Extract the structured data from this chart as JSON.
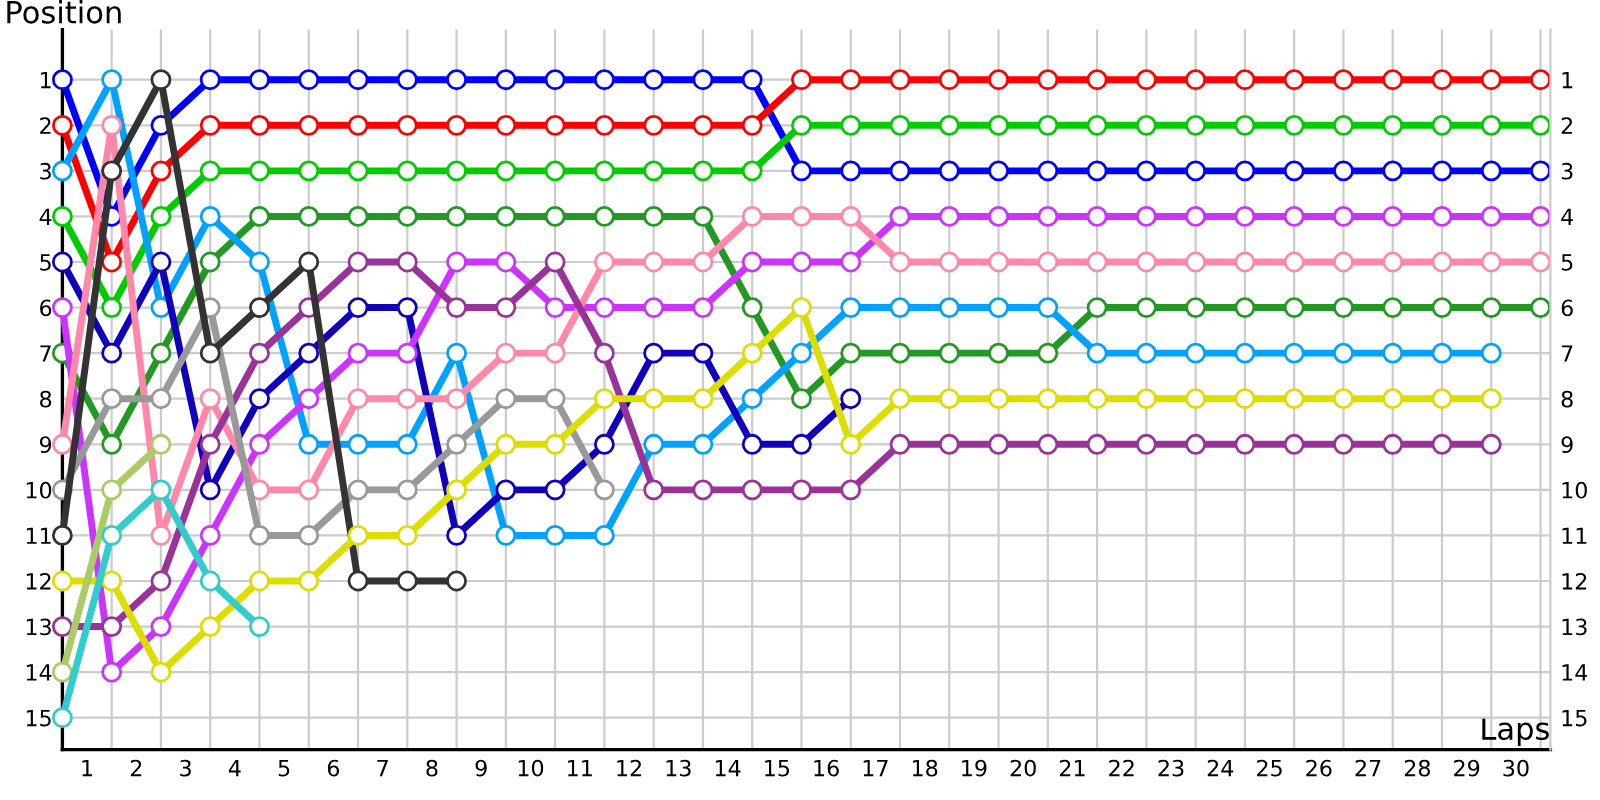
{
  "chart_data": {
    "type": "line",
    "xlabel": "Laps",
    "ylabel": "Position",
    "x": [
      0,
      1,
      2,
      3,
      4,
      5,
      6,
      7,
      8,
      9,
      10,
      11,
      12,
      13,
      14,
      15,
      16,
      17,
      18,
      19,
      20,
      21,
      22,
      23,
      24,
      25,
      26,
      27,
      28,
      29,
      30
    ],
    "series": [
      {
        "color": "#0000ff",
        "values": [
          1,
          4,
          2,
          1,
          1,
          1,
          1,
          1,
          1,
          1,
          1,
          1,
          1,
          1,
          1,
          3,
          3,
          3,
          3,
          3,
          3,
          3,
          3,
          3,
          3,
          3,
          3,
          3,
          3,
          3,
          3
        ]
      },
      {
        "color": "#ff0000",
        "values": [
          2,
          5,
          3,
          2,
          2,
          2,
          2,
          2,
          2,
          2,
          2,
          2,
          2,
          2,
          2,
          1,
          1,
          1,
          1,
          1,
          1,
          1,
          1,
          1,
          1,
          1,
          1,
          1,
          1,
          1,
          1
        ]
      },
      {
        "color": "#00cc00",
        "values": [
          4,
          6,
          4,
          3,
          3,
          3,
          3,
          3,
          3,
          3,
          3,
          3,
          3,
          3,
          3,
          2,
          2,
          2,
          2,
          2,
          2,
          2,
          2,
          2,
          2,
          2,
          2,
          2,
          2,
          2,
          2
        ]
      },
      {
        "color": "#229922",
        "values": [
          7,
          9,
          7,
          5,
          4,
          4,
          4,
          4,
          4,
          4,
          4,
          4,
          4,
          4,
          6,
          8,
          7,
          7,
          7,
          7,
          7,
          6,
          6,
          6,
          6,
          6,
          6,
          6,
          6,
          6,
          6
        ]
      },
      {
        "color": "#00a2ff",
        "values": [
          3,
          1,
          6,
          4,
          5,
          9,
          9,
          9,
          7,
          11,
          11,
          11,
          9,
          9,
          8,
          7,
          6,
          6,
          6,
          6,
          6,
          7,
          7,
          7,
          7,
          7,
          7,
          7,
          7,
          7,
          null
        ]
      },
      {
        "color": "#1100bb",
        "values": [
          5,
          7,
          5,
          10,
          8,
          7,
          6,
          6,
          11,
          10,
          10,
          9,
          7,
          7,
          9,
          9,
          8,
          null,
          null,
          null,
          null,
          null,
          null,
          null,
          null,
          null,
          null,
          null,
          null,
          null,
          null
        ]
      },
      {
        "color": "#cc33ff",
        "values": [
          6,
          14,
          13,
          11,
          9,
          8,
          7,
          7,
          5,
          5,
          6,
          6,
          6,
          6,
          5,
          5,
          5,
          4,
          4,
          4,
          4,
          4,
          4,
          4,
          4,
          4,
          4,
          4,
          4,
          4,
          4
        ]
      },
      {
        "color": "#ff88aa",
        "values": [
          9,
          2,
          11,
          8,
          10,
          10,
          8,
          8,
          8,
          7,
          7,
          5,
          5,
          5,
          4,
          4,
          4,
          5,
          5,
          5,
          5,
          5,
          5,
          5,
          5,
          5,
          5,
          5,
          5,
          5,
          5
        ]
      },
      {
        "color": "#993399",
        "values": [
          13,
          13,
          12,
          9,
          7,
          6,
          5,
          5,
          6,
          6,
          5,
          7,
          10,
          10,
          10,
          10,
          10,
          9,
          9,
          9,
          9,
          9,
          9,
          9,
          9,
          9,
          9,
          9,
          9,
          9,
          null
        ]
      },
      {
        "color": "#999999",
        "values": [
          10,
          8,
          8,
          6,
          11,
          11,
          10,
          10,
          9,
          8,
          8,
          10,
          null,
          null,
          null,
          null,
          null,
          null,
          null,
          null,
          null,
          null,
          null,
          null,
          null,
          null,
          null,
          null,
          null,
          null,
          null
        ]
      },
      {
        "color": "#333333",
        "values": [
          11,
          3,
          1,
          7,
          6,
          5,
          12,
          12,
          12,
          null,
          null,
          null,
          null,
          null,
          null,
          null,
          null,
          null,
          null,
          null,
          null,
          null,
          null,
          null,
          null,
          null,
          null,
          null,
          null,
          null,
          null
        ]
      },
      {
        "color": "#dddd00",
        "values": [
          12,
          12,
          14,
          13,
          12,
          12,
          11,
          11,
          10,
          9,
          9,
          8,
          8,
          8,
          7,
          6,
          9,
          8,
          8,
          8,
          8,
          8,
          8,
          8,
          8,
          8,
          8,
          8,
          8,
          8,
          null
        ]
      },
      {
        "color": "#aacc66",
        "values": [
          14,
          10,
          9,
          null,
          null,
          null,
          null,
          null,
          null,
          null,
          null,
          null,
          null,
          null,
          null,
          null,
          null,
          null,
          null,
          null,
          null,
          null,
          null,
          null,
          null,
          null,
          null,
          null,
          null,
          null,
          null
        ]
      },
      {
        "color": "#33cccc",
        "values": [
          15,
          11,
          10,
          12,
          13,
          null,
          null,
          null,
          null,
          null,
          null,
          null,
          null,
          null,
          null,
          null,
          null,
          null,
          null,
          null,
          null,
          null,
          null,
          null,
          null,
          null,
          null,
          null,
          null,
          null,
          null
        ]
      }
    ],
    "xlim": [
      0,
      30.2
    ],
    "xticks": [
      {
        "value": 0,
        "label": null
      },
      {
        "value": 1,
        "label": null
      },
      {
        "value": 2,
        "label": null
      },
      {
        "value": 3,
        "label": null
      },
      {
        "value": 4,
        "label": null
      },
      {
        "value": 5,
        "label": null
      },
      {
        "value": 6,
        "label": null
      },
      {
        "value": 7,
        "label": null
      },
      {
        "value": 8,
        "label": null
      },
      {
        "value": 9,
        "label": null
      },
      {
        "value": 10,
        "label": null
      },
      {
        "value": 11,
        "label": null
      },
      {
        "value": 12,
        "label": null
      },
      {
        "value": 13,
        "label": null
      },
      {
        "value": 14,
        "label": null
      },
      {
        "value": 15,
        "label": null
      },
      {
        "value": 16,
        "label": null
      },
      {
        "value": 17,
        "label": null
      },
      {
        "value": 18,
        "label": null
      },
      {
        "value": 19,
        "label": null
      },
      {
        "value": 20,
        "label": null
      },
      {
        "value": 21,
        "label": null
      },
      {
        "value": 22,
        "label": null
      },
      {
        "value": 23,
        "label": null
      },
      {
        "value": 24,
        "label": null
      },
      {
        "value": 25,
        "label": null
      },
      {
        "value": 26,
        "label": null
      },
      {
        "value": 27,
        "label": null
      },
      {
        "value": 28,
        "label": null
      },
      {
        "value": 29,
        "label": null
      },
      {
        "value": 30,
        "label": null
      },
      {
        "value": 0.5,
        "label": "1"
      },
      {
        "value": 1.5,
        "label": "2"
      },
      {
        "value": 2.5,
        "label": "3"
      },
      {
        "value": 3.5,
        "label": "4"
      },
      {
        "value": 4.5,
        "label": "5"
      },
      {
        "value": 5.5,
        "label": "6"
      },
      {
        "value": 6.5,
        "label": "7"
      },
      {
        "value": 7.5,
        "label": "8"
      },
      {
        "value": 8.5,
        "label": "9"
      },
      {
        "value": 9.5,
        "label": "10"
      },
      {
        "value": 10.5,
        "label": "11"
      },
      {
        "value": 11.5,
        "label": "12"
      },
      {
        "value": 12.5,
        "label": "13"
      },
      {
        "value": 13.5,
        "label": "14"
      },
      {
        "value": 14.5,
        "label": "15"
      },
      {
        "value": 15.5,
        "label": "16"
      },
      {
        "value": 16.5,
        "label": "17"
      },
      {
        "value": 17.5,
        "label": "18"
      },
      {
        "value": 18.5,
        "label": "19"
      },
      {
        "value": 19.5,
        "label": "20"
      },
      {
        "value": 20.5,
        "label": "21"
      },
      {
        "value": 21.5,
        "label": "22"
      },
      {
        "value": 22.5,
        "label": "23"
      },
      {
        "value": 23.5,
        "label": "24"
      },
      {
        "value": 24.5,
        "label": "25"
      },
      {
        "value": 25.5,
        "label": "26"
      },
      {
        "value": 26.5,
        "label": "27"
      },
      {
        "value": 27.5,
        "label": "28"
      },
      {
        "value": 28.5,
        "label": "29"
      },
      {
        "value": 29.5,
        "label": "30"
      }
    ],
    "ylim": [
      15.7,
      -0.1
    ],
    "yticks": [
      1,
      2,
      3,
      4,
      5,
      6,
      7,
      8,
      9,
      10,
      11,
      12,
      13,
      14,
      15
    ],
    "y2lim": [
      15.7,
      -0.1
    ],
    "y2ticks": [
      1,
      2,
      3,
      4,
      5,
      6,
      7,
      8,
      9,
      10,
      11,
      12,
      13,
      14,
      15
    ],
    "grid": true,
    "marker": "circle",
    "line_style": "solid"
  }
}
